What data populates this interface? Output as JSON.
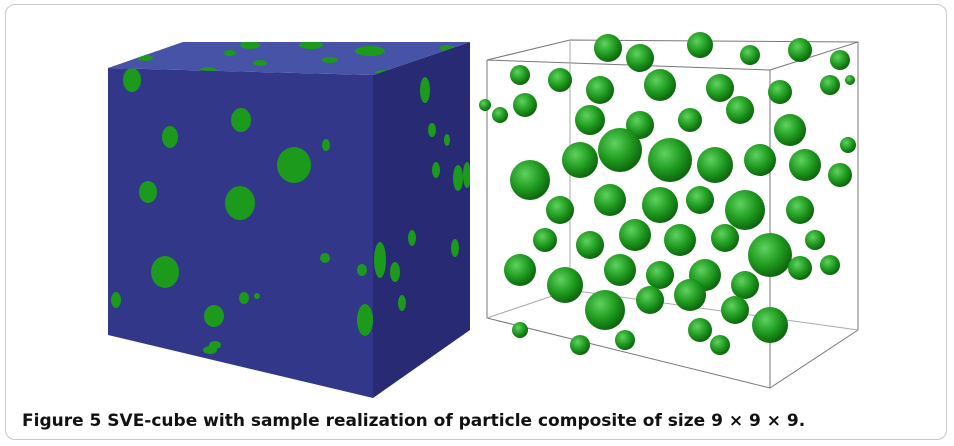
{
  "figure": {
    "caption": "Figure 5 SVE-cube with sample realization of particle composite of size 9 × 9 × 9."
  }
}
